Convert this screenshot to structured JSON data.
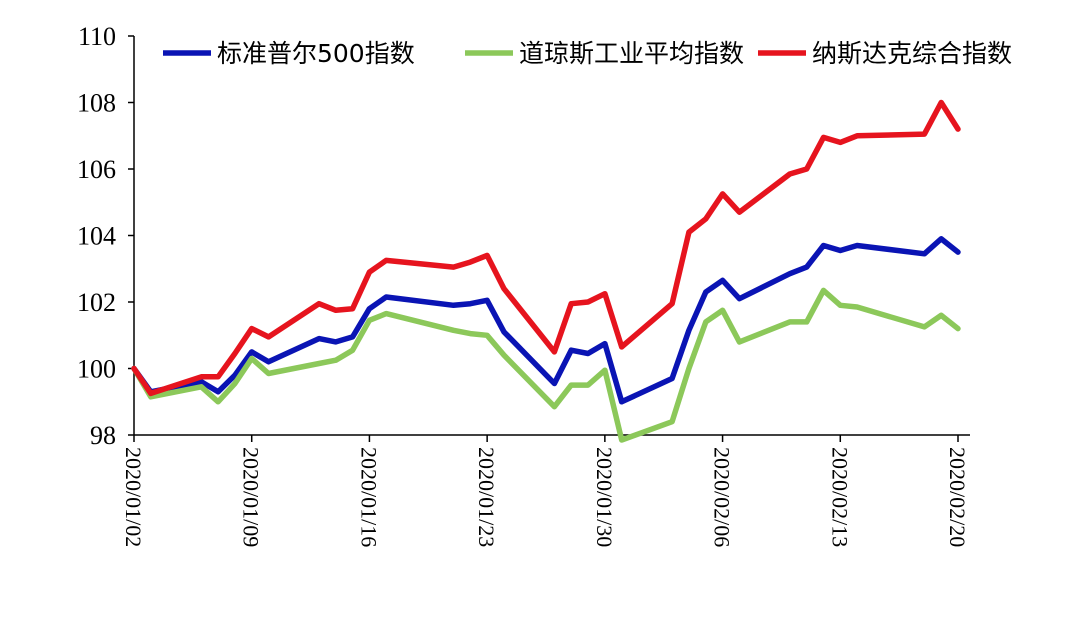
{
  "chart_data": {
    "type": "line",
    "title": "",
    "xlabel": "",
    "ylabel": "",
    "ylim": [
      98,
      110
    ],
    "yticks": [
      98,
      100,
      102,
      104,
      106,
      108,
      110
    ],
    "x_tick_labels": [
      "2020/01/02",
      "2020/01/09",
      "2020/01/16",
      "2020/01/23",
      "2020/01/30",
      "2020/02/06",
      "2020/02/13",
      "2020/02/20"
    ],
    "legend_position": "top",
    "grid": false,
    "x": [
      "2020/01/02",
      "2020/01/03",
      "2020/01/06",
      "2020/01/07",
      "2020/01/08",
      "2020/01/09",
      "2020/01/10",
      "2020/01/13",
      "2020/01/14",
      "2020/01/15",
      "2020/01/16",
      "2020/01/17",
      "2020/01/21",
      "2020/01/22",
      "2020/01/23",
      "2020/01/24",
      "2020/01/27",
      "2020/01/28",
      "2020/01/29",
      "2020/01/30",
      "2020/01/31",
      "2020/02/03",
      "2020/02/04",
      "2020/02/05",
      "2020/02/06",
      "2020/02/07",
      "2020/02/10",
      "2020/02/11",
      "2020/02/12",
      "2020/02/13",
      "2020/02/14",
      "2020/02/18",
      "2020/02/19",
      "2020/02/20"
    ],
    "series": [
      {
        "name": "标准普尔500指数",
        "color": "#0a14b4",
        "values": [
          100.0,
          99.3,
          99.6,
          99.3,
          99.8,
          100.5,
          100.2,
          100.9,
          100.8,
          100.95,
          101.8,
          102.15,
          101.9,
          101.95,
          102.05,
          101.1,
          99.55,
          100.55,
          100.45,
          100.75,
          99.0,
          99.7,
          101.15,
          102.3,
          102.65,
          102.1,
          102.85,
          103.05,
          103.7,
          103.55,
          103.7,
          103.45,
          103.9,
          103.5
        ]
      },
      {
        "name": "道琼斯工业平均指数",
        "color": "#8cc85a",
        "values": [
          100.0,
          99.15,
          99.45,
          99.0,
          99.55,
          100.3,
          99.85,
          100.15,
          100.25,
          100.55,
          101.45,
          101.65,
          101.15,
          101.05,
          101.0,
          100.4,
          98.85,
          99.5,
          99.5,
          99.95,
          97.85,
          98.4,
          100.0,
          101.4,
          101.75,
          100.8,
          101.4,
          101.4,
          102.35,
          101.9,
          101.85,
          101.25,
          101.6,
          101.2
        ]
      },
      {
        "name": "纳斯达克综合指数",
        "color": "#e6141e",
        "values": [
          100.0,
          99.25,
          99.75,
          99.75,
          100.45,
          101.2,
          100.95,
          101.95,
          101.75,
          101.8,
          102.9,
          103.25,
          103.05,
          103.2,
          103.4,
          102.4,
          100.5,
          101.95,
          102.0,
          102.25,
          100.65,
          101.95,
          104.1,
          104.5,
          105.25,
          104.7,
          105.85,
          106.0,
          106.95,
          106.8,
          107.0,
          107.05,
          108.0,
          107.2
        ]
      }
    ]
  }
}
